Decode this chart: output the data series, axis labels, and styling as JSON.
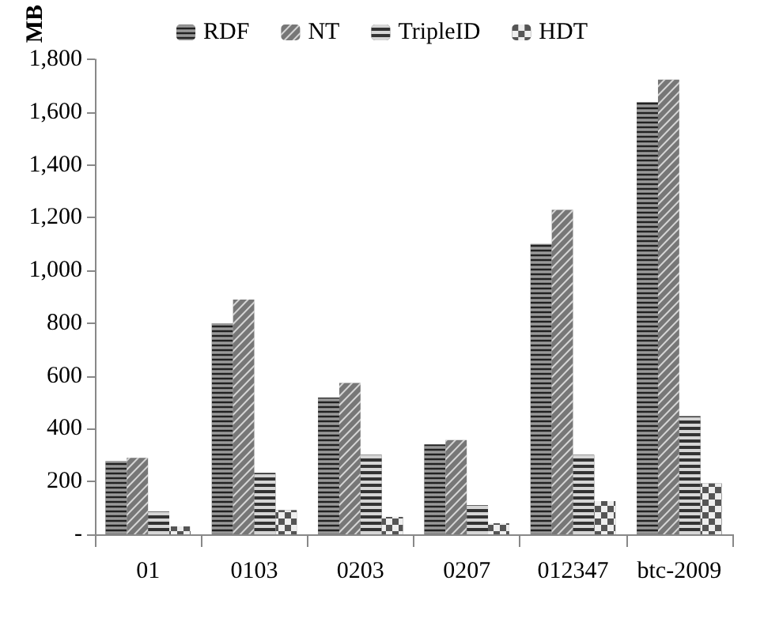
{
  "chart_data": {
    "type": "bar",
    "categories": [
      "01",
      "0103",
      "0203",
      "0207",
      "012347",
      "btc-2009"
    ],
    "series": [
      {
        "name": "RDF",
        "color": "#222222",
        "values": [
          277,
          800,
          518,
          341,
          1100,
          1638
        ]
      },
      {
        "name": "NT",
        "color": "#777777",
        "values": [
          290,
          890,
          574,
          357,
          1230,
          1723
        ]
      },
      {
        "name": "TripleID",
        "color": "#333333",
        "values": [
          86,
          233,
          301,
          110,
          301,
          448
        ]
      },
      {
        "name": "HDT",
        "color": "#555555",
        "values": [
          30,
          92,
          66,
          42,
          126,
          193
        ]
      }
    ],
    "ylabel": "MB",
    "ylim": [
      0,
      1800
    ],
    "yticks": [
      {
        "value": 0,
        "label": "-"
      },
      {
        "value": 200,
        "label": "200"
      },
      {
        "value": 400,
        "label": "400"
      },
      {
        "value": 600,
        "label": "600"
      },
      {
        "value": 800,
        "label": "800"
      },
      {
        "value": 1000,
        "label": "1,000"
      },
      {
        "value": 1200,
        "label": "1,200"
      },
      {
        "value": 1400,
        "label": "1,400"
      },
      {
        "value": 1600,
        "label": "1,600"
      },
      {
        "value": 1800,
        "label": "1,800"
      }
    ],
    "grid": false,
    "legend": "top"
  }
}
